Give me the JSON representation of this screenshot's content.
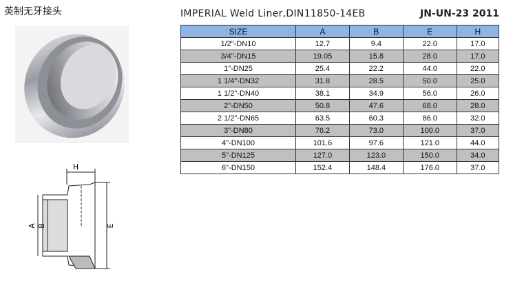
{
  "header": {
    "product_name": "英制无牙接头",
    "title": "IMPERIAL Weld Liner,DIN11850-14EB",
    "code": "JN-UN-23 2011"
  },
  "diagram": {
    "labels": [
      "H",
      "A",
      "B",
      "E"
    ]
  },
  "table": {
    "columns": [
      "SIZE",
      "A",
      "B",
      "E",
      "H"
    ],
    "rows": [
      [
        "1/2\"-DN10",
        "12.7",
        "9.4",
        "22.0",
        "17.0"
      ],
      [
        "3/4\"-DN15",
        "19.05",
        "15.8",
        "28.0",
        "17.0"
      ],
      [
        "1\"-DN25",
        "25.4",
        "22.2",
        "44.0",
        "22.0"
      ],
      [
        "1 1/4\"-DN32",
        "31.8",
        "28.5",
        "50.0",
        "25.0"
      ],
      [
        "1 1/2\"-DN40",
        "38.1",
        "34.9",
        "56.0",
        "26.0"
      ],
      [
        "2\"-DN50",
        "50.8",
        "47.6",
        "68.0",
        "28.0"
      ],
      [
        "2 1/2\"-DN65",
        "63.5",
        "60.3",
        "86.0",
        "32.0"
      ],
      [
        "3\"-DN80",
        "76.2",
        "73.0",
        "100.0",
        "37.0"
      ],
      [
        "4\"-DN100",
        "101.6",
        "97.6",
        "121.0",
        "44.0"
      ],
      [
        "5\"-DN125",
        "127.0",
        "123.0",
        "150.0",
        "34.0"
      ],
      [
        "6\"-DN150",
        "152.4",
        "148.4",
        "176.0",
        "37.0"
      ]
    ]
  }
}
